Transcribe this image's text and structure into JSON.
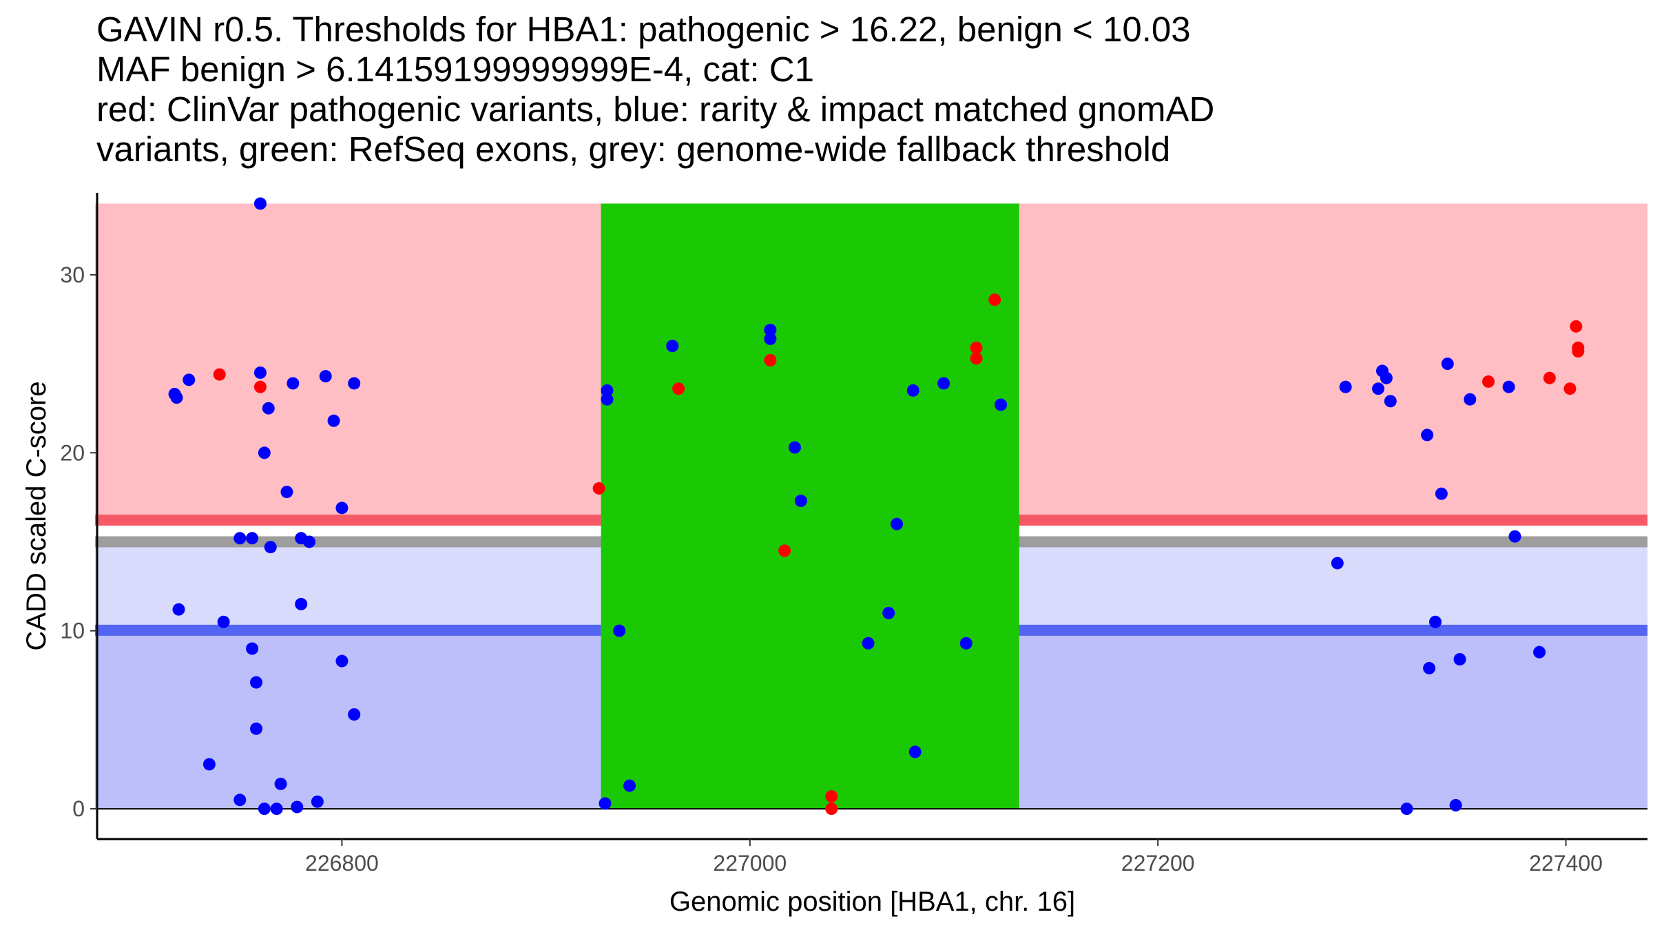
{
  "title_lines": [
    "GAVIN r0.5. Thresholds for HBA1: pathogenic > 16.22, benign < 10.03",
    "MAF benign > 6.14159199999999E-4, cat: C1",
    "red: ClinVar pathogenic variants, blue: rarity & impact matched gnomAD",
    "variants, green: RefSeq exons, grey: genome-wide fallback threshold"
  ],
  "chart_data": {
    "type": "scatter",
    "xlabel": "Genomic position [HBA1, chr. 16]",
    "ylabel": "CADD scaled C-score",
    "xlim": [
      226680,
      227440
    ],
    "ylim": [
      -1.7,
      34.6
    ],
    "x_ticks": [
      226800,
      227000,
      227200,
      227400
    ],
    "y_ticks": [
      0,
      10,
      20,
      30
    ],
    "grid": false,
    "colors": {
      "pathogenic_zone": "#ffbec4",
      "benign_zone_light": "#d9dbfd",
      "benign_zone_dark": "#bcbffa",
      "exon": "#1bc804",
      "pathogenic_line": "#f55965",
      "benign_line": "#5365f2",
      "fallback_line": "#9d9d9d",
      "pathogenic_point": "#ff0000",
      "benign_point": "#0000ff"
    },
    "regions": {
      "gene_start": 226679,
      "gene_end": 227440,
      "exon": [
        226927,
        227132
      ],
      "score_max": 34,
      "pathogenic_threshold": 16.22,
      "benign_threshold": 10.03,
      "fallback_threshold": 15.0,
      "fallback_light_zone_top": 14.7
    },
    "series": [
      {
        "name": "ClinVar pathogenic",
        "color": "#ff0000",
        "points": [
          [
            226740,
            24.4
          ],
          [
            226760,
            23.7
          ],
          [
            226926,
            18.0
          ],
          [
            226965,
            23.6
          ],
          [
            227010,
            25.2
          ],
          [
            227017,
            14.5
          ],
          [
            227040,
            0.7
          ],
          [
            227040,
            0.0
          ],
          [
            227111,
            25.9
          ],
          [
            227111,
            25.3
          ],
          [
            227120,
            28.6
          ],
          [
            227362,
            24.0
          ],
          [
            227392,
            24.2
          ],
          [
            227402,
            23.6
          ],
          [
            227405,
            27.1
          ],
          [
            227406,
            25.9
          ],
          [
            227406,
            25.7
          ]
        ]
      },
      {
        "name": "gnomAD matched",
        "color": "#0000ff",
        "points": [
          [
            226760,
            34.0
          ],
          [
            226718,
            23.3
          ],
          [
            226719,
            23.1
          ],
          [
            226725,
            24.1
          ],
          [
            226760,
            24.5
          ],
          [
            226764,
            22.5
          ],
          [
            226762,
            20.0
          ],
          [
            226776,
            23.9
          ],
          [
            226792,
            24.3
          ],
          [
            226796,
            21.8
          ],
          [
            226800,
            16.9
          ],
          [
            226806,
            23.9
          ],
          [
            226773,
            17.8
          ],
          [
            226750,
            15.2
          ],
          [
            226756,
            15.2
          ],
          [
            226780,
            15.2
          ],
          [
            226784,
            15.0
          ],
          [
            226765,
            14.7
          ],
          [
            226720,
            11.2
          ],
          [
            226780,
            11.5
          ],
          [
            226742,
            10.5
          ],
          [
            226756,
            9.0
          ],
          [
            226800,
            8.3
          ],
          [
            226758,
            7.1
          ],
          [
            226806,
            5.3
          ],
          [
            226758,
            4.5
          ],
          [
            226735,
            2.5
          ],
          [
            226770,
            1.4
          ],
          [
            226750,
            0.5
          ],
          [
            226762,
            0.0
          ],
          [
            226768,
            0.0
          ],
          [
            226778,
            0.1
          ],
          [
            226788,
            0.4
          ],
          [
            226930,
            23.5
          ],
          [
            226930,
            23.0
          ],
          [
            226962,
            26.0
          ],
          [
            226936,
            10.0
          ],
          [
            226941,
            1.3
          ],
          [
            226929,
            0.3
          ],
          [
            227010,
            26.9
          ],
          [
            227010,
            26.4
          ],
          [
            227022,
            20.3
          ],
          [
            227025,
            17.3
          ],
          [
            227058,
            9.3
          ],
          [
            227068,
            11.0
          ],
          [
            227072,
            16.0
          ],
          [
            227080,
            23.5
          ],
          [
            227081,
            3.2
          ],
          [
            227095,
            23.9
          ],
          [
            227106,
            9.3
          ],
          [
            227123,
            22.7
          ],
          [
            227288,
            13.8
          ],
          [
            227292,
            23.7
          ],
          [
            227308,
            23.6
          ],
          [
            227310,
            24.6
          ],
          [
            227312,
            24.2
          ],
          [
            227314,
            22.9
          ],
          [
            227332,
            21.0
          ],
          [
            227333,
            7.9
          ],
          [
            227336,
            10.5
          ],
          [
            227339,
            17.7
          ],
          [
            227342,
            25.0
          ],
          [
            227346,
            0.2
          ],
          [
            227348,
            8.4
          ],
          [
            227353,
            23.0
          ],
          [
            227322,
            0.0
          ],
          [
            227372,
            23.7
          ],
          [
            227375,
            15.3
          ],
          [
            227387,
            8.8
          ]
        ]
      }
    ]
  }
}
